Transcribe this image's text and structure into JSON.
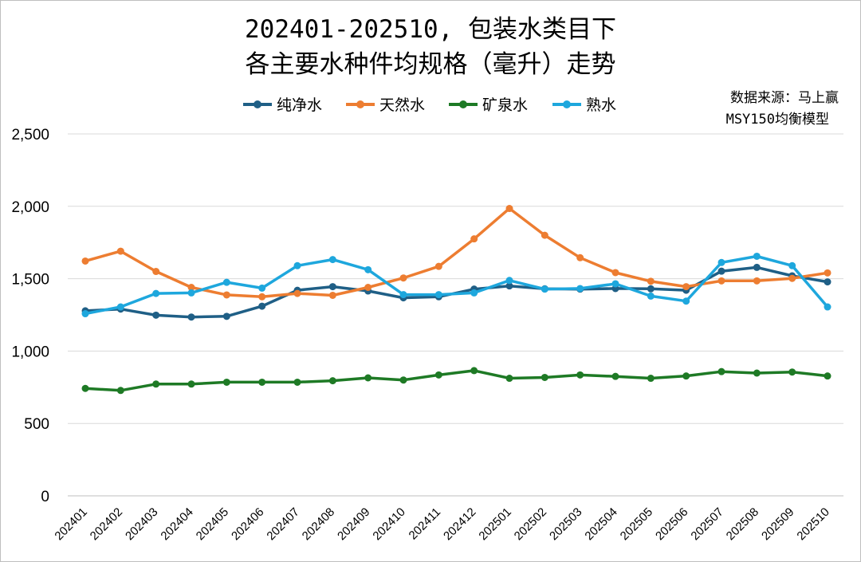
{
  "chart_data": {
    "type": "line",
    "title_lines": [
      "202401-202510, 包装水类目下",
      "各主要水种件均规格（毫升）走势"
    ],
    "source_lines": [
      "数据来源：马上赢",
      "MSY150均衡模型"
    ],
    "xlabel": "",
    "ylabel": "",
    "ylim": [
      0,
      2500
    ],
    "yticks": [
      0,
      500,
      1000,
      1500,
      2000,
      2500
    ],
    "ytick_labels": [
      "0",
      "500",
      "1,000",
      "1,500",
      "2,000",
      "2,500"
    ],
    "grid": true,
    "legend_position": "top",
    "categories": [
      "202401",
      "202402",
      "202403",
      "202404",
      "202405",
      "202406",
      "202407",
      "202408",
      "202409",
      "202410",
      "202411",
      "202412",
      "202501",
      "202502",
      "202503",
      "202504",
      "202505",
      "202506",
      "202507",
      "202508",
      "202509",
      "202510"
    ],
    "series": [
      {
        "name": "纯净水",
        "color": "#1f5f86",
        "values": [
          1278,
          1290,
          1248,
          1235,
          1240,
          1310,
          1420,
          1445,
          1415,
          1368,
          1375,
          1428,
          1450,
          1430,
          1428,
          1432,
          1430,
          1420,
          1552,
          1578,
          1520,
          1478
        ]
      },
      {
        "name": "天然水",
        "color": "#ed7d31",
        "values": [
          1622,
          1690,
          1550,
          1440,
          1388,
          1375,
          1398,
          1385,
          1440,
          1505,
          1585,
          1775,
          1985,
          1800,
          1645,
          1542,
          1482,
          1445,
          1485,
          1485,
          1502,
          1540
        ]
      },
      {
        "name": "矿泉水",
        "color": "#1e7a25",
        "values": [
          742,
          728,
          772,
          772,
          785,
          785,
          785,
          795,
          815,
          800,
          835,
          865,
          812,
          818,
          835,
          825,
          812,
          828,
          858,
          848,
          855,
          828
        ]
      },
      {
        "name": "熟水",
        "color": "#1ea7dd",
        "values": [
          1258,
          1305,
          1398,
          1402,
          1475,
          1435,
          1590,
          1632,
          1562,
          1390,
          1390,
          1402,
          1488,
          1428,
          1432,
          1465,
          1380,
          1345,
          1612,
          1655,
          1590,
          1305
        ]
      }
    ]
  }
}
